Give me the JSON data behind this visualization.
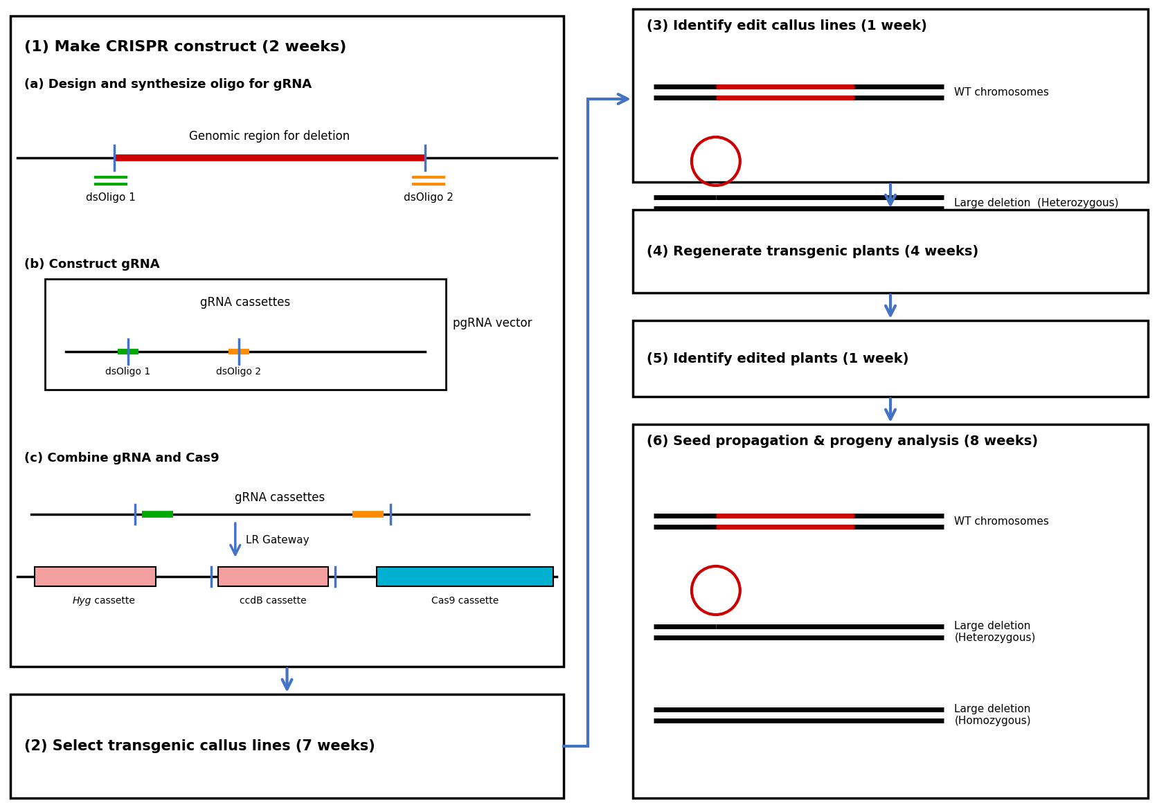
{
  "bg_color": "#ffffff",
  "border_color": "#000000",
  "blue_arrow_color": "#4472C4",
  "red_color": "#CC0000",
  "green_color": "#00AA00",
  "orange_color": "#FF8C00",
  "pink_color": "#F4A0A0",
  "cyan_color": "#00B0D0",
  "text_color": "#000000",
  "box1_title": "(1) Make CRISPR construct (2 weeks)",
  "box2_title": "(2) Select transgenic callus lines (7 weeks)",
  "box3_title": "(3) Identify edit callus lines (1 week)",
  "box4_title": "(4) Regenerate transgenic plants (4 weeks)",
  "box5_title": "(5) Identify edited plants (1 week)",
  "box6_title": "(6) Seed propagation & progeny analysis (8 weeks)",
  "label_a": "(a) Design and synthesize oligo for gRNA",
  "label_b": "(b) Construct gRNA",
  "label_c": "(c) Combine gRNA and Cas9",
  "genomic_label": "Genomic region for deletion",
  "dsoligo1": "dsOligo 1",
  "dsoligo2": "dsOligo 2",
  "grna_cassettes": "gRNA cassettes",
  "pgrna_vector": "pgRNA vector",
  "lr_gateway": "LR Gateway",
  "hyg_italic": "Hyg",
  "hyg_normal": " cassette",
  "ccdb_cassette": "ccdB cassette",
  "cas9_cassette": "Cas9 cassette",
  "wt_chromosomes": "WT chromosomes",
  "large_del_hetero": "Large deletion  (Heterozygous)",
  "large_del_homo": "Large deletion\n(Homozygous)",
  "large_del_hetero2": "Large deletion\n(Heterozygous)"
}
